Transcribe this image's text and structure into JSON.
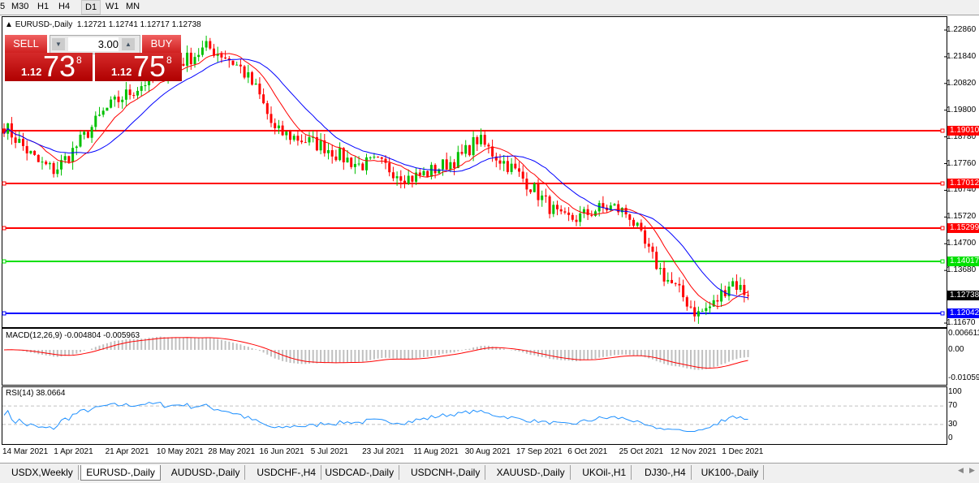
{
  "timeframes": [
    "5",
    "M30",
    "H1",
    "H4",
    "D1",
    "W1",
    "MN"
  ],
  "active_timeframe": "D1",
  "chart": {
    "symbol_line": "EURUSD-,Daily",
    "ohlc": "1.12721 1.12741 1.12717 1.12738"
  },
  "trade_panel": {
    "sell_label": "SELL",
    "buy_label": "BUY",
    "volume": "3.00",
    "sell_prefix": "1.12",
    "sell_big": "73",
    "sell_sup": "8",
    "buy_prefix": "1.12",
    "buy_big": "75",
    "buy_sup": "8"
  },
  "price_axis": [
    "1.22860",
    "1.21840",
    "1.20820",
    "1.19800",
    "1.18780",
    "1.17760",
    "1.16740",
    "1.15720",
    "1.14700",
    "1.13680",
    "1.11670"
  ],
  "levels": [
    {
      "price": "1.19010",
      "color": "#ff0000"
    },
    {
      "price": "1.17012",
      "color": "#ff0000"
    },
    {
      "price": "1.15299",
      "color": "#ff0000"
    },
    {
      "price": "1.14017",
      "color": "#00e000"
    },
    {
      "price": "1.12042",
      "color": "#0000ff"
    }
  ],
  "current_price": "1.12738",
  "macd": {
    "label": "MACD(12,26,9) -0.004804 -0.005963",
    "axis": [
      "0.006611",
      "0.00",
      "-0.01059"
    ]
  },
  "rsi": {
    "label": "RSI(14) 38.0664",
    "axis": [
      "100",
      "70",
      "30",
      "0"
    ]
  },
  "dates": [
    "14 Mar 2021",
    "1 Apr 2021",
    "21 Apr 2021",
    "10 May 2021",
    "28 May 2021",
    "16 Jun 2021",
    "5 Jul 2021",
    "23 Jul 2021",
    "11 Aug 2021",
    "30 Aug 2021",
    "17 Sep 2021",
    "6 Oct 2021",
    "25 Oct 2021",
    "12 Nov 2021",
    "1 Dec 2021"
  ],
  "chart_data": {
    "type": "candlestick",
    "series_close_approx": [
      1.192,
      1.185,
      1.178,
      1.175,
      1.182,
      1.19,
      1.198,
      1.203,
      1.207,
      1.212,
      1.215,
      1.218,
      1.222,
      1.219,
      1.214,
      1.205,
      1.19,
      1.188,
      1.186,
      1.184,
      1.18,
      1.177,
      1.178,
      1.175,
      1.172,
      1.174,
      1.177,
      1.18,
      1.187,
      1.181,
      1.176,
      1.17,
      1.163,
      1.156,
      1.157,
      1.16,
      1.161,
      1.158,
      1.145,
      1.135,
      1.128,
      1.12,
      1.124,
      1.133,
      1.1274
    ]
  },
  "tabs": [
    "USDX,Weekly",
    "EURUSD-,Daily",
    "AUDUSD-,Daily",
    "USDCHF-,H4",
    "USDCAD-,Daily",
    "USDCNH-,Daily",
    "XAUUSD-,Daily",
    "UKOil-,H1",
    "DJ30-,H4",
    "UK100-,Daily"
  ],
  "active_tab": "EURUSD-,Daily"
}
